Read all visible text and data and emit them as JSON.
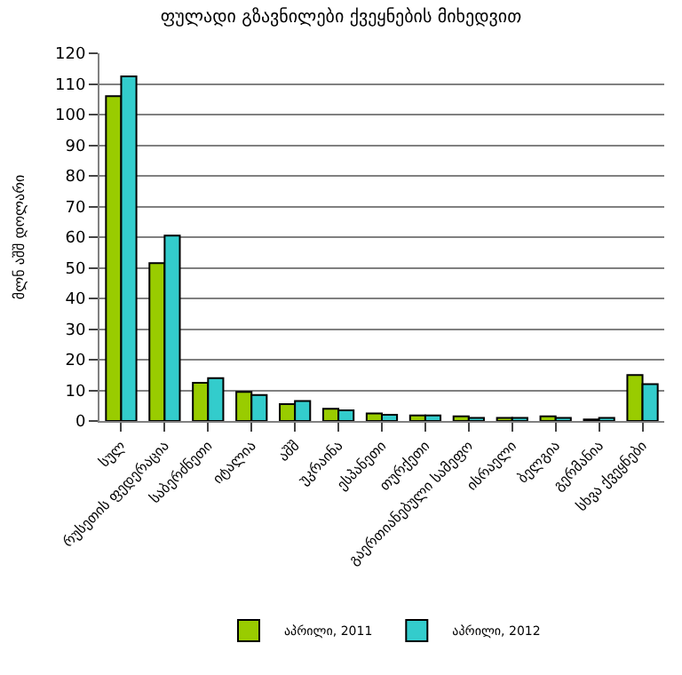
{
  "chart_data": {
    "type": "bar",
    "title": "ფულადი გზავნილები ქვეყნების მიხედვით",
    "ylabel": "მლნ აშშ დოლარი",
    "categories": [
      "სულ",
      "რუსეთის ფედერაცია",
      "საბერძნეთი",
      "იტალია",
      "აშშ",
      "უკრაინა",
      "ესპანეთი",
      "თურქეთი",
      "გაერთიანებული სამეფო",
      "ისრაელი",
      "ბელგია",
      "გერმანია",
      "სხვა ქვეყნები"
    ],
    "series": [
      {
        "name": "აპრილი, 2011",
        "color": "#99cc00",
        "values": [
          106,
          51.5,
          12.5,
          9.5,
          5.5,
          4,
          2.5,
          1.8,
          1.5,
          1,
          1.5,
          0.5,
          15
        ]
      },
      {
        "name": "აპრილი, 2012",
        "color": "#33cccc",
        "values": [
          112.5,
          60.5,
          14,
          8.5,
          6.5,
          3.5,
          2,
          1.8,
          1,
          1,
          1,
          1,
          12
        ]
      }
    ],
    "ylim": [
      0,
      120
    ],
    "yticks": [
      0,
      10,
      20,
      30,
      40,
      50,
      60,
      70,
      80,
      90,
      100,
      110,
      120
    ],
    "grid": "y",
    "legend": "bottom"
  }
}
